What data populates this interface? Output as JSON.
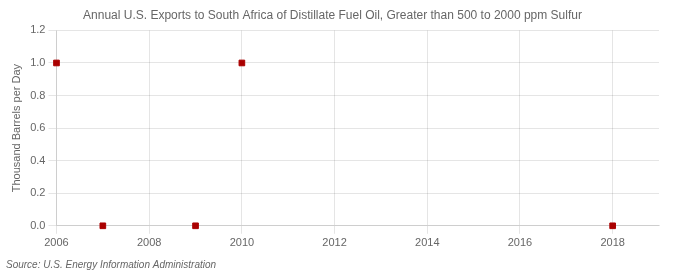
{
  "chart_data": {
    "type": "scatter",
    "title": "Annual U.S. Exports to South Africa of Distillate Fuel Oil, Greater than 500 to 2000 ppm Sulfur",
    "y_label": "Thousand Barrels per Day",
    "annotations": [
      "Source: U.S. Energy Information Administration"
    ],
    "x": [
      2006,
      2007,
      2009,
      2010,
      2018
    ],
    "values": [
      1.0,
      0.0,
      0.0,
      1.0,
      0.0
    ],
    "color": "#AA0000",
    "marker": "square",
    "xlim": [
      2006,
      2019
    ],
    "xticks": [
      2006,
      2008,
      2010,
      2012,
      2014,
      2016,
      2018
    ],
    "ylim": [
      0.0,
      1.2
    ],
    "yticks": [
      {
        "value": 0.0,
        "label": "0.0"
      },
      0.2,
      0.4,
      0.6,
      0.8,
      {
        "value": 1.0,
        "label": "1.0"
      },
      1.2
    ],
    "grid": true,
    "legend": false
  }
}
